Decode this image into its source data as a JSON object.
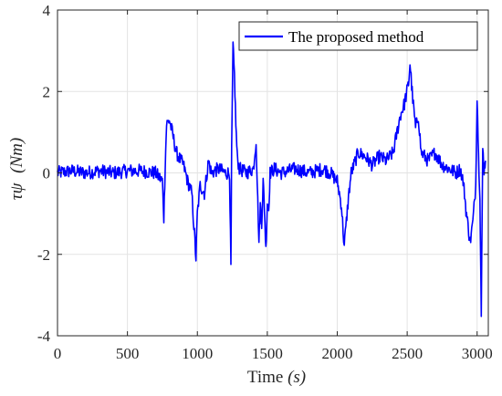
{
  "chart_data": {
    "type": "line",
    "xlabel_text": "Time",
    "xlabel_unit": "(s)",
    "ylabel_symbol": "τψ",
    "ylabel_unit": "(Nm)",
    "xlim": [
      0,
      3080
    ],
    "ylim": [
      -4,
      4
    ],
    "x_ticks": [
      0,
      500,
      1000,
      1500,
      2000,
      2500,
      3000
    ],
    "x_tick_labels": [
      "0",
      "500",
      "1000",
      "1500",
      "2000",
      "2500",
      "3000"
    ],
    "y_ticks": [
      -4,
      -2,
      0,
      2,
      4
    ],
    "y_tick_labels": [
      "-4",
      "-2",
      "0",
      "2",
      "4"
    ],
    "grid": true,
    "legend_position": "top-right",
    "series": [
      {
        "name": "The proposed method",
        "color": "#0000ff",
        "x": [
          0,
          100,
          200,
          300,
          400,
          500,
          600,
          700,
          750,
          760,
          770,
          780,
          800,
          820,
          850,
          880,
          900,
          930,
          960,
          990,
          1000,
          1020,
          1050,
          1080,
          1100,
          1150,
          1200,
          1230,
          1240,
          1245,
          1255,
          1265,
          1275,
          1285,
          1300,
          1350,
          1400,
          1420,
          1440,
          1450,
          1460,
          1470,
          1480,
          1490,
          1500,
          1510,
          1520,
          1550,
          1600,
          1700,
          1800,
          1900,
          1950,
          2000,
          2030,
          2050,
          2080,
          2100,
          2150,
          2200,
          2250,
          2300,
          2350,
          2400,
          2450,
          2480,
          2510,
          2520,
          2540,
          2560,
          2580,
          2600,
          2650,
          2700,
          2750,
          2800,
          2850,
          2880,
          2900,
          2910,
          2920,
          2950,
          2970,
          2990,
          3000,
          3010,
          3020,
          3030,
          3040,
          3050,
          3060
        ],
        "y": [
          0,
          0.05,
          0,
          0.05,
          0,
          0.05,
          0.05,
          0,
          -0.2,
          -1.1,
          0.2,
          1.2,
          1.3,
          1.0,
          0.5,
          0.3,
          0.2,
          -0.2,
          -0.5,
          -2.1,
          -1.0,
          -0.3,
          -0.5,
          0.3,
          0,
          0.1,
          0,
          0,
          -2.35,
          0.5,
          3.1,
          2.4,
          1.2,
          0.4,
          0.1,
          0,
          0.1,
          0.8,
          -1.7,
          -0.8,
          -1.2,
          -0.2,
          -0.9,
          -1.9,
          -0.7,
          -0.9,
          0,
          0.1,
          0,
          0.1,
          0,
          0.1,
          0,
          -0.2,
          -0.8,
          -1.8,
          -0.6,
          0,
          0.5,
          0.4,
          0.2,
          0.4,
          0.3,
          0.5,
          1.4,
          1.7,
          2.2,
          2.7,
          1.8,
          1.1,
          1.4,
          0.5,
          0.3,
          0.5,
          0.2,
          0.1,
          0,
          0.1,
          -0.2,
          -0.5,
          -0.9,
          -1.7,
          -1.2,
          -0.3,
          1.9,
          0.4,
          -0.5,
          -3.5,
          0.6,
          0.1,
          0.3
        ]
      }
    ]
  }
}
